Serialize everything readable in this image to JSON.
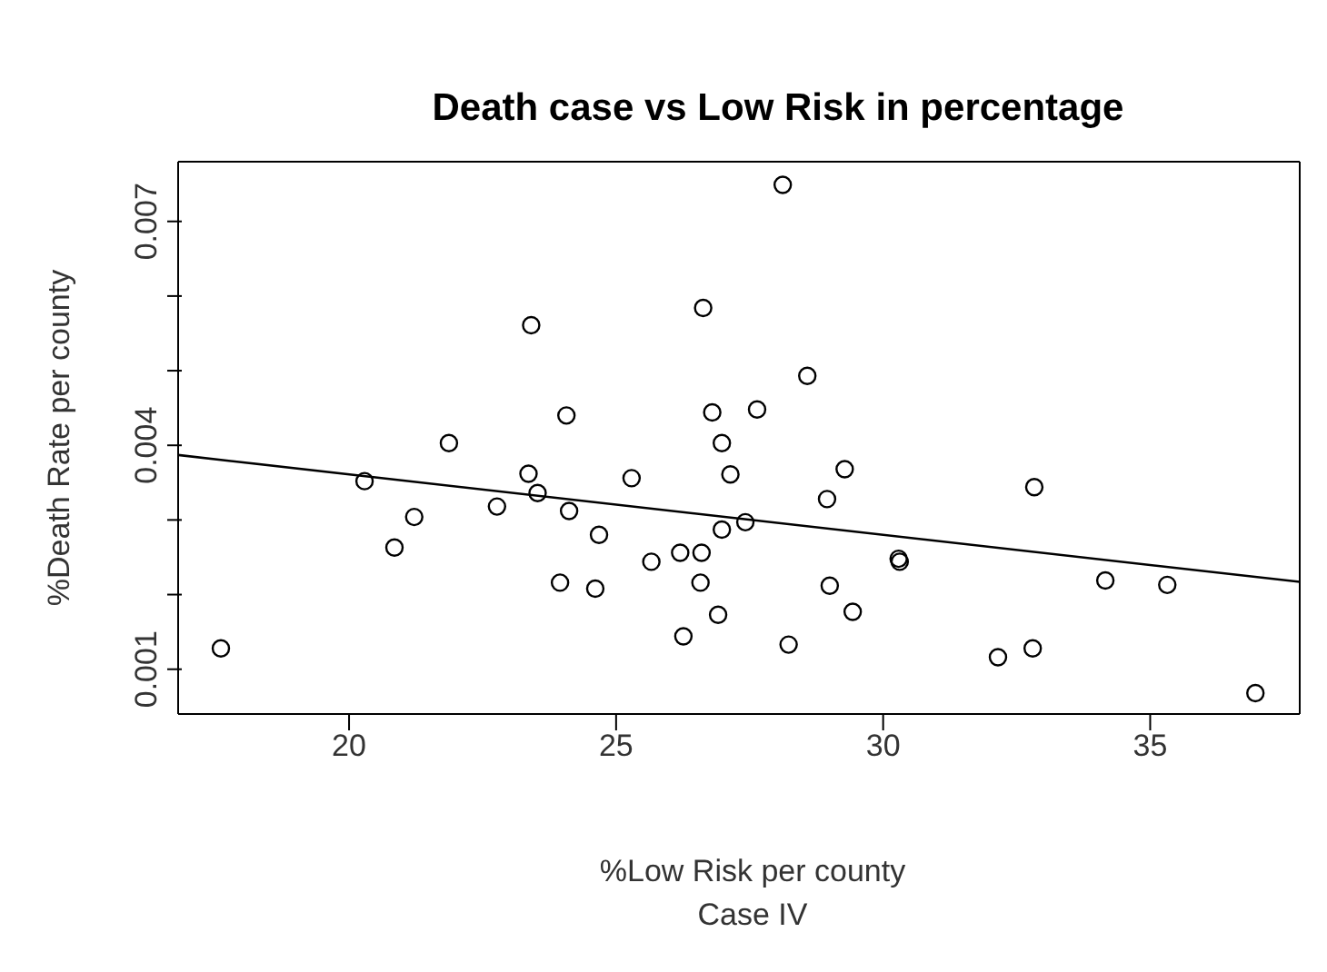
{
  "chart_data": {
    "type": "scatter",
    "title": "Death case vs Low Risk in percentage",
    "xlabel": "%Low Risk per county",
    "ylabel": "%Death Rate per county",
    "annotations": [
      "Case IV"
    ],
    "xlim": [
      16.8,
      37.8
    ],
    "xticks": [
      20,
      25,
      30,
      35
    ],
    "ylim": [
      0.0004,
      0.0078
    ],
    "yticks": [
      0.001,
      {
        "value": 0.002,
        "label": null
      },
      {
        "value": 0.003,
        "label": null
      },
      0.004,
      {
        "value": 0.005,
        "label": null
      },
      {
        "value": 0.006,
        "label": null
      },
      0.007
    ],
    "series": [
      {
        "marker": "circle",
        "color": "#000000",
        "x": [
          17.6,
          20.29,
          20.85,
          21.22,
          21.87,
          22.77,
          23.41,
          23.36,
          23.53,
          24.07,
          24.12,
          23.95,
          24.68,
          24.61,
          25.29,
          25.66,
          26.2,
          26.26,
          26.6,
          26.58,
          26.63,
          26.8,
          26.98,
          27.14,
          26.98,
          26.91,
          27.42,
          27.64,
          28.12,
          28.23,
          28.58,
          28.95,
          29.28,
          29,
          29.43,
          30.29,
          30.31,
          32.15,
          32.8,
          32.83,
          34.16,
          35.32,
          36.97
        ],
        "values": [
          0.00128,
          0.00352,
          0.00263,
          0.00304,
          0.00403,
          0.00318,
          0.00561,
          0.00362,
          0.00336,
          0.0044,
          0.00312,
          0.00216,
          0.0028,
          0.00208,
          0.00356,
          0.00244,
          0.00256,
          0.00144,
          0.00256,
          0.00216,
          0.00584,
          0.00444,
          0.00403,
          0.00361,
          0.00287,
          0.00173,
          0.00297,
          0.00448,
          0.00749,
          0.00133,
          0.00493,
          0.00328,
          0.00368,
          0.00212,
          0.00177,
          0.00248,
          0.00244,
          0.00116,
          0.00128,
          0.00344,
          0.00219,
          0.00213,
          0.00068
        ]
      },
      {
        "type": "line",
        "color": "#000000",
        "x": [
          16.8,
          37.8
        ],
        "values": [
          0.00387,
          0.00217
        ]
      }
    ]
  }
}
